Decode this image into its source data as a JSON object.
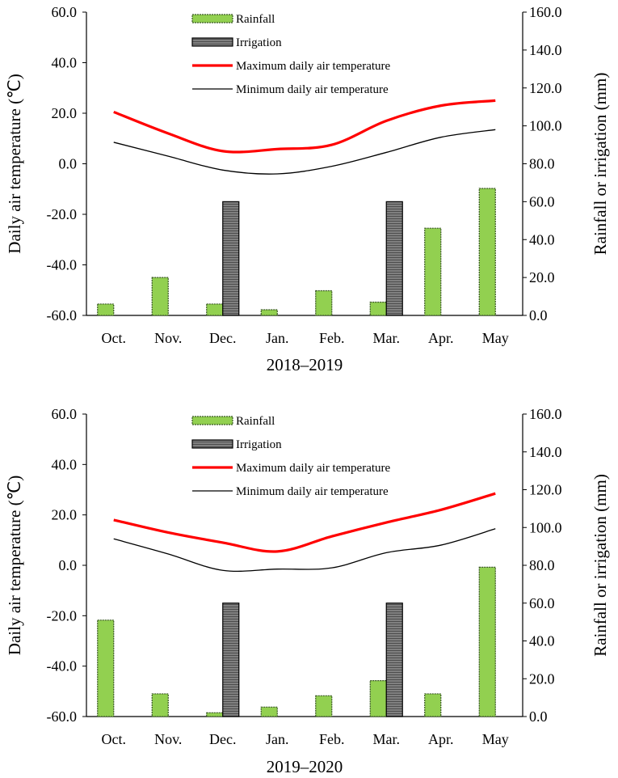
{
  "colors": {
    "rainfall_fill": "#92d050",
    "rainfall_border": "#385723",
    "irrigation_fill": "#808080",
    "irrigation_border": "#000000",
    "tmax_line": "#ff0000",
    "tmin_line": "#000000"
  },
  "chart_data": [
    {
      "type": "bar+line",
      "subtitle": "2018–2019",
      "categories": [
        "Oct.",
        "Nov.",
        "Dec.",
        "Jan.",
        "Feb.",
        "Mar.",
        "Apr.",
        "May"
      ],
      "ylabel_left": "Daily air temperature (℃)",
      "ylabel_right": "Rainfall or irrigation (mm)",
      "ylim_left": [
        -60,
        60
      ],
      "ylim_right": [
        0,
        160
      ],
      "yticks_left": [
        "-60.0",
        "-40.0",
        "-20.0",
        "0.0",
        "20.0",
        "40.0",
        "60.0"
      ],
      "yticks_right": [
        "0.0",
        "20.0",
        "40.0",
        "60.0",
        "80.0",
        "100.0",
        "120.0",
        "140.0",
        "160.0"
      ],
      "legend": {
        "rainfall": "Rainfall",
        "irrigation": "Irrigation",
        "tmax": "Maximum daily air temperature",
        "tmin": "Minimum daily air temperature"
      },
      "series": [
        {
          "name": "Rainfall",
          "axis": "right",
          "kind": "bar",
          "values": [
            6,
            20,
            6,
            3,
            13,
            7,
            46,
            67
          ]
        },
        {
          "name": "Irrigation",
          "axis": "right",
          "kind": "bar",
          "values": [
            0,
            0,
            60,
            0,
            0,
            60,
            0,
            0
          ]
        },
        {
          "name": "Maximum daily air temperature",
          "axis": "left",
          "kind": "line",
          "values": [
            20.5,
            12.0,
            5.0,
            5.8,
            7.5,
            17.0,
            23.0,
            25.0
          ]
        },
        {
          "name": "Minimum daily air temperature",
          "axis": "left",
          "kind": "line",
          "values": [
            8.5,
            3.0,
            -2.5,
            -4.0,
            -1.0,
            4.5,
            10.5,
            13.5
          ]
        }
      ]
    },
    {
      "type": "bar+line",
      "subtitle": "2019–2020",
      "categories": [
        "Oct.",
        "Nov.",
        "Dec.",
        "Jan.",
        "Feb.",
        "Mar.",
        "Apr.",
        "May"
      ],
      "ylabel_left": "Daily air temperature (℃)",
      "ylabel_right": "Rainfall or irrigation (mm)",
      "ylim_left": [
        -60,
        60
      ],
      "ylim_right": [
        0,
        160
      ],
      "yticks_left": [
        "-60.0",
        "-40.0",
        "-20.0",
        "0.0",
        "20.0",
        "40.0",
        "60.0"
      ],
      "yticks_right": [
        "0.0",
        "20.0",
        "40.0",
        "60.0",
        "80.0",
        "100.0",
        "120.0",
        "140.0",
        "160.0"
      ],
      "legend": {
        "rainfall": "Rainfall",
        "irrigation": "Irrigation",
        "tmax": "Maximum daily air temperature",
        "tmin": "Minimum daily air temperature"
      },
      "series": [
        {
          "name": "Rainfall",
          "axis": "right",
          "kind": "bar",
          "values": [
            51,
            12,
            2,
            5,
            11,
            19,
            12,
            79
          ]
        },
        {
          "name": "Irrigation",
          "axis": "right",
          "kind": "bar",
          "values": [
            0,
            0,
            60,
            0,
            0,
            60,
            0,
            0
          ]
        },
        {
          "name": "Maximum daily air temperature",
          "axis": "left",
          "kind": "line",
          "values": [
            18.0,
            13.0,
            9.0,
            5.5,
            11.5,
            17.0,
            22.0,
            28.5
          ]
        },
        {
          "name": "Minimum daily air temperature",
          "axis": "left",
          "kind": "line",
          "values": [
            10.5,
            4.5,
            -2.0,
            -1.5,
            -1.0,
            5.0,
            8.0,
            14.5
          ]
        }
      ]
    }
  ]
}
